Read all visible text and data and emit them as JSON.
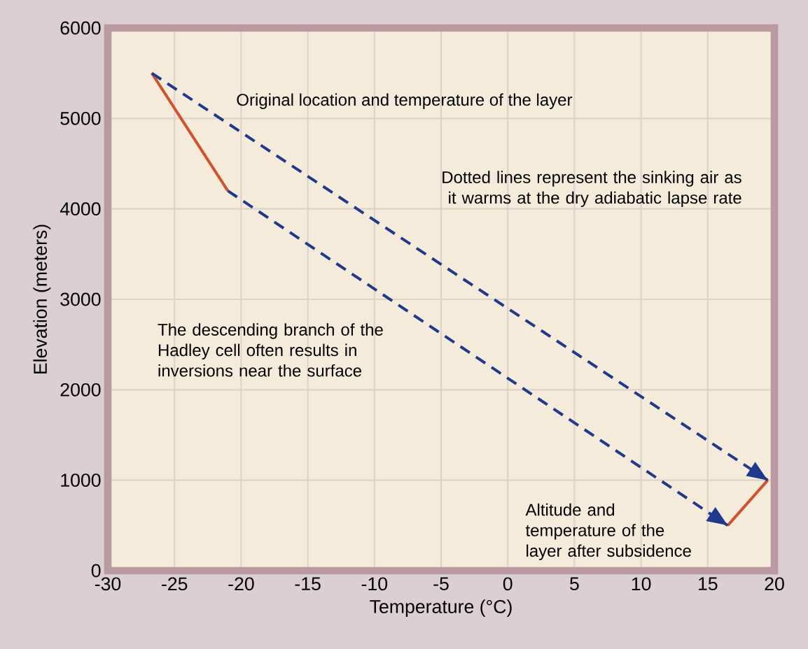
{
  "chart_data": {
    "type": "line",
    "xlabel": "Temperature (°C)",
    "ylabel": "Elevation (meters)",
    "xlim": [
      -30,
      20
    ],
    "ylim": [
      0,
      6000
    ],
    "xticks": [
      -30,
      -25,
      -20,
      -15,
      -10,
      -5,
      0,
      5,
      10,
      15,
      20
    ],
    "yticks": [
      0,
      1000,
      2000,
      3000,
      4000,
      5000,
      6000
    ],
    "grid": true,
    "marker": "none",
    "series": [
      {
        "color": "#d2522e",
        "line_style": "solid",
        "x": [
          -26.7,
          -21,
          null,
          16.5,
          19.5
        ],
        "values": [
          5500,
          4200,
          null,
          500,
          1000
        ]
      },
      {
        "color": "#1f3a8c",
        "line_style": "dashed",
        "x": [
          -26.7,
          19.5
        ],
        "values": [
          5500,
          1000
        ]
      },
      {
        "color": "#1f3a8c",
        "line_style": "dashed",
        "x": [
          -21,
          16.5
        ],
        "values": [
          4200,
          500
        ]
      }
    ],
    "annotations": [
      "Original location and temperature of the layer",
      "Dotted lines represent the sinking air as it warms at the dry adiabatic lapse rate",
      "The descending branch of the Hadley cell often results in inversions near the surface",
      "Altitude and temperature of the layer after subsidence"
    ]
  }
}
